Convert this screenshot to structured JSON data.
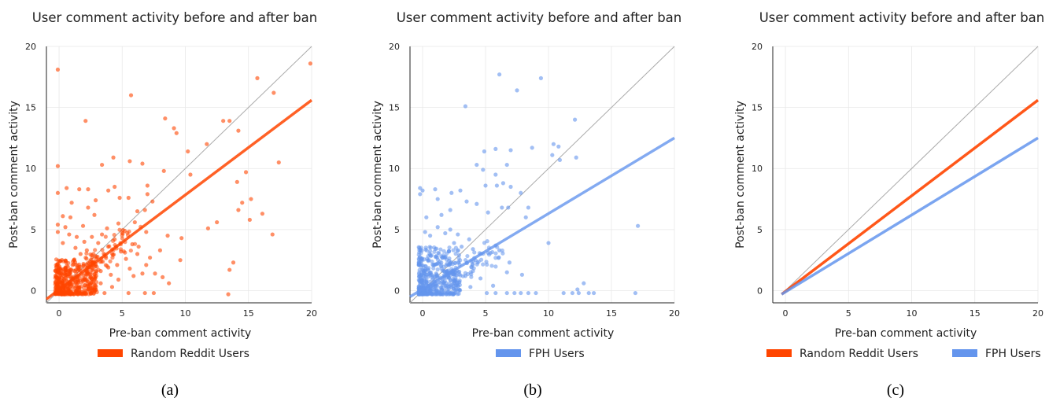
{
  "colors": {
    "random": "#ff4500",
    "fph": "#6495ed",
    "diagonal": "#aaaaaa",
    "grid": "#e8e8e8"
  },
  "chart_data": [
    {
      "type": "scatter",
      "panel": "a",
      "caption": "(a)",
      "title": "User comment activity before and after ban",
      "xlabel": "Pre-ban comment activity",
      "ylabel": "Post-ban comment activity",
      "xlim": [
        -1,
        20
      ],
      "ylim": [
        -1,
        20
      ],
      "xticks": [
        0,
        5,
        10,
        15,
        20
      ],
      "yticks": [
        0,
        5,
        10,
        15,
        20
      ],
      "grid": true,
      "reference_line": {
        "x": [
          -1,
          20
        ],
        "y": [
          -1,
          20
        ]
      },
      "series": [
        {
          "name": "Random Reddit Users",
          "color": "#ff4500",
          "fit_line": {
            "x": [
              -1,
              20
            ],
            "y": [
              -0.7,
              15.6
            ]
          },
          "points": [
            [
              -0.1,
              18.1
            ],
            [
              5.7,
              16.0
            ],
            [
              2.1,
              13.9
            ],
            [
              19.9,
              18.6
            ],
            [
              15.7,
              17.4
            ],
            [
              17.0,
              16.2
            ],
            [
              13.0,
              13.9
            ],
            [
              13.5,
              13.9
            ],
            [
              14.2,
              13.1
            ],
            [
              8.4,
              14.1
            ],
            [
              9.1,
              13.3
            ],
            [
              9.3,
              12.9
            ],
            [
              11.7,
              12.0
            ],
            [
              10.2,
              11.4
            ],
            [
              17.4,
              10.5
            ],
            [
              -0.1,
              10.2
            ],
            [
              3.4,
              10.3
            ],
            [
              4.3,
              10.9
            ],
            [
              5.6,
              10.6
            ],
            [
              6.6,
              10.4
            ],
            [
              8.3,
              9.8
            ],
            [
              10.4,
              9.5
            ],
            [
              14.8,
              9.7
            ],
            [
              14.1,
              8.9
            ],
            [
              15.2,
              7.5
            ],
            [
              14.5,
              7.2
            ],
            [
              16.1,
              6.3
            ],
            [
              15.1,
              5.8
            ],
            [
              14.2,
              6.6
            ],
            [
              11.8,
              5.1
            ],
            [
              12.5,
              5.6
            ],
            [
              16.9,
              4.6
            ],
            [
              13.8,
              2.3
            ],
            [
              13.5,
              1.7
            ],
            [
              13.4,
              -0.3
            ],
            [
              7.0,
              7.9
            ],
            [
              7.4,
              7.3
            ],
            [
              7.0,
              8.6
            ],
            [
              6.8,
              6.6
            ],
            [
              6.2,
              6.5
            ],
            [
              5.5,
              7.6
            ],
            [
              4.8,
              7.6
            ],
            [
              4.4,
              8.5
            ],
            [
              3.9,
              8.2
            ],
            [
              2.9,
              7.4
            ],
            [
              2.3,
              8.3
            ],
            [
              1.6,
              8.3
            ],
            [
              0.6,
              8.4
            ],
            [
              -0.1,
              8.0
            ],
            [
              1.0,
              7.2
            ],
            [
              0.3,
              6.1
            ],
            [
              0.9,
              6.0
            ],
            [
              1.9,
              5.3
            ],
            [
              2.8,
              6.2
            ],
            [
              3.8,
              5.1
            ],
            [
              4.7,
              5.5
            ],
            [
              6.0,
              5.6
            ],
            [
              6.9,
              4.8
            ],
            [
              8.6,
              4.5
            ],
            [
              9.7,
              4.3
            ],
            [
              6.3,
              3.6
            ],
            [
              7.2,
              2.7
            ],
            [
              6.9,
              2.1
            ],
            [
              7.6,
              1.4
            ],
            [
              8.2,
              1.1
            ],
            [
              8.7,
              0.6
            ],
            [
              9.6,
              2.5
            ],
            [
              6.6,
              1.4
            ],
            [
              5.9,
              1.2
            ],
            [
              6.8,
              -0.2
            ],
            [
              7.5,
              -0.2
            ],
            [
              5.5,
              -0.2
            ],
            [
              4.2,
              0.3
            ],
            [
              4.7,
              0.9
            ],
            [
              4.9,
              3.2
            ],
            [
              3.7,
              2.8
            ],
            [
              3.1,
              3.9
            ],
            [
              2.6,
              4.4
            ],
            [
              5.2,
              4.9
            ],
            [
              5.8,
              3.8
            ],
            [
              4.4,
              4.2
            ],
            [
              3.9,
              3.6
            ],
            [
              3.4,
              4.6
            ],
            [
              2.0,
              4.0
            ],
            [
              0.8,
              4.6
            ],
            [
              0.3,
              3.9
            ],
            [
              -0.1,
              4.8
            ],
            [
              -0.1,
              5.4
            ],
            [
              0.5,
              5.2
            ],
            [
              1.4,
              4.4
            ],
            [
              2.2,
              3.3
            ],
            [
              2.6,
              2.9
            ],
            [
              1.7,
              3.0
            ],
            [
              1.3,
              3.5
            ],
            [
              2.9,
              2.2
            ],
            [
              3.3,
              1.6
            ],
            [
              3.9,
              1.9
            ],
            [
              3.3,
              0.6
            ],
            [
              2.8,
              1.1
            ],
            [
              3.6,
              -0.2
            ],
            [
              2.9,
              0.1
            ],
            [
              4.6,
              2.1
            ],
            [
              5.3,
              2.6
            ],
            [
              5.6,
              1.8
            ],
            [
              4.1,
              1.3
            ],
            [
              6.2,
              3.0
            ],
            [
              8.0,
              3.3
            ],
            [
              2.3,
              6.8
            ]
          ],
          "cluster": {
            "x": [
              -0.3,
              3.0
            ],
            "y": [
              -0.3,
              2.6
            ]
          }
        }
      ]
    },
    {
      "type": "scatter",
      "panel": "b",
      "caption": "(b)",
      "title": "User comment activity before and after ban",
      "xlabel": "Pre-ban comment activity",
      "ylabel": "Post-ban comment activity",
      "xlim": [
        -1,
        20
      ],
      "ylim": [
        -1,
        20
      ],
      "xticks": [
        0,
        5,
        10,
        15,
        20
      ],
      "yticks": [
        0,
        5,
        10,
        15,
        20
      ],
      "grid": true,
      "reference_line": {
        "x": [
          -1,
          20
        ],
        "y": [
          -1,
          20
        ]
      },
      "series": [
        {
          "name": "FPH Users",
          "color": "#6495ed",
          "fit_line": {
            "x": [
              -1,
              20
            ],
            "y": [
              -0.5,
              12.5
            ]
          },
          "points": [
            [
              6.1,
              17.7
            ],
            [
              9.4,
              17.4
            ],
            [
              7.5,
              16.4
            ],
            [
              3.4,
              15.1
            ],
            [
              12.1,
              14.0
            ],
            [
              10.4,
              12.0
            ],
            [
              10.8,
              11.8
            ],
            [
              10.3,
              11.1
            ],
            [
              10.9,
              10.7
            ],
            [
              12.2,
              10.9
            ],
            [
              8.7,
              11.7
            ],
            [
              7.0,
              11.5
            ],
            [
              5.8,
              11.6
            ],
            [
              4.9,
              11.4
            ],
            [
              6.7,
              10.3
            ],
            [
              4.3,
              10.3
            ],
            [
              4.8,
              9.9
            ],
            [
              5.8,
              9.5
            ],
            [
              7.0,
              8.5
            ],
            [
              7.8,
              8.0
            ],
            [
              5.0,
              8.6
            ],
            [
              5.9,
              8.6
            ],
            [
              6.4,
              8.8
            ],
            [
              3.0,
              8.2
            ],
            [
              2.3,
              8.0
            ],
            [
              1.0,
              8.3
            ],
            [
              0.0,
              8.2
            ],
            [
              -0.2,
              8.4
            ],
            [
              -0.2,
              7.9
            ],
            [
              1.2,
              7.5
            ],
            [
              3.5,
              7.3
            ],
            [
              4.3,
              7.1
            ],
            [
              5.2,
              6.4
            ],
            [
              6.3,
              6.8
            ],
            [
              6.8,
              6.8
            ],
            [
              8.2,
              6.0
            ],
            [
              8.4,
              6.8
            ],
            [
              2.2,
              6.6
            ],
            [
              0.3,
              6.0
            ],
            [
              1.5,
              6.2
            ],
            [
              10.0,
              3.9
            ],
            [
              5.8,
              3.7
            ],
            [
              6.1,
              3.3
            ],
            [
              5.2,
              3.1
            ],
            [
              4.2,
              2.5
            ],
            [
              4.0,
              1.6
            ],
            [
              3.4,
              1.2
            ],
            [
              4.6,
              1.0
            ],
            [
              3.8,
              0.3
            ],
            [
              5.6,
              0.4
            ],
            [
              6.7,
              1.5
            ],
            [
              7.9,
              1.3
            ],
            [
              6.9,
              2.3
            ],
            [
              5.1,
              -0.2
            ],
            [
              5.8,
              -0.2
            ],
            [
              6.7,
              -0.2
            ],
            [
              7.3,
              -0.2
            ],
            [
              7.8,
              -0.2
            ],
            [
              8.4,
              -0.2
            ],
            [
              9.0,
              -0.2
            ],
            [
              11.2,
              -0.2
            ],
            [
              11.9,
              -0.2
            ],
            [
              12.4,
              -0.2
            ],
            [
              13.2,
              -0.2
            ],
            [
              13.6,
              -0.2
            ],
            [
              12.8,
              0.6
            ],
            [
              12.3,
              0.1
            ],
            [
              16.9,
              -0.2
            ],
            [
              17.1,
              5.3
            ],
            [
              3.1,
              3.6
            ],
            [
              2.8,
              4.6
            ],
            [
              2.2,
              5.0
            ],
            [
              1.8,
              4.7
            ],
            [
              3.7,
              4.2
            ],
            [
              2.9,
              2.9
            ],
            [
              4.0,
              3.4
            ],
            [
              0.2,
              4.8
            ],
            [
              0.6,
              4.5
            ],
            [
              1.2,
              5.2
            ],
            [
              2.5,
              3.9
            ]
          ],
          "cluster": {
            "x": [
              -0.3,
              3.0
            ],
            "y": [
              -0.3,
              3.6
            ]
          }
        }
      ]
    },
    {
      "type": "line",
      "panel": "c",
      "caption": "(c)",
      "title": "User comment activity before and after ban",
      "xlabel": "Pre-ban comment activity",
      "ylabel": "Post-ban comment activity",
      "xlim": [
        -1,
        20
      ],
      "ylim": [
        -1,
        20
      ],
      "xticks": [
        0,
        5,
        10,
        15,
        20
      ],
      "yticks": [
        0,
        5,
        10,
        15,
        20
      ],
      "grid": true,
      "reference_line": {
        "x": [
          -0.3,
          20
        ],
        "y": [
          -0.3,
          20
        ]
      },
      "series": [
        {
          "name": "Random Reddit Users",
          "color": "#ff4500",
          "x": [
            -0.3,
            20
          ],
          "y": [
            -0.3,
            15.6
          ]
        },
        {
          "name": "FPH Users",
          "color": "#6495ed",
          "x": [
            -0.3,
            20
          ],
          "y": [
            -0.3,
            12.5
          ]
        }
      ]
    }
  ]
}
